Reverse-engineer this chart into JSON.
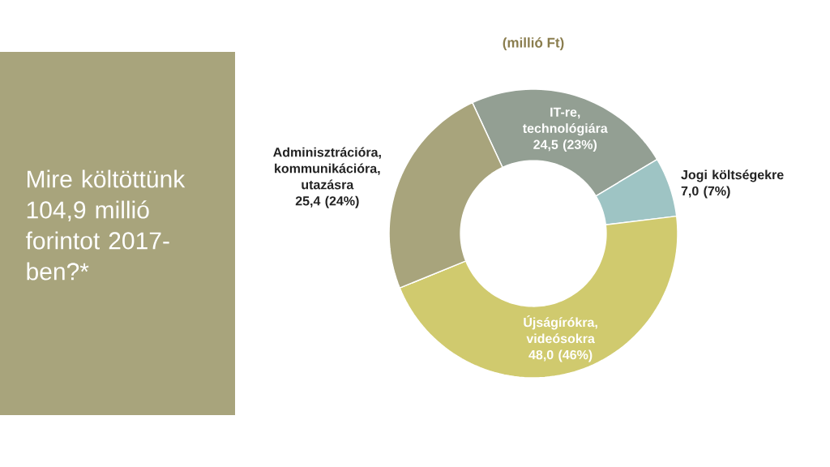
{
  "chart_data": {
    "type": "donut",
    "title": "Mire költöttünk 104,9 millió forintot 2017-ben?*",
    "subtitle": "(millió Ft)",
    "categories": [
      "IT-re, technológiára",
      "Jogi költségekre",
      "Újságírókra, videósokra",
      "Adminisztrációra, kommunikációra, utazásra"
    ],
    "values": [
      24.5,
      7.0,
      48.0,
      25.4
    ],
    "colors": [
      "#939f93",
      "#9ec4c4",
      "#d0ca6e",
      "#a8a47c"
    ],
    "value_labels": [
      "24,5 (23%)",
      "7,0 (7%)",
      "48,0 (46%)",
      "25,4 (24%)"
    ]
  }
}
